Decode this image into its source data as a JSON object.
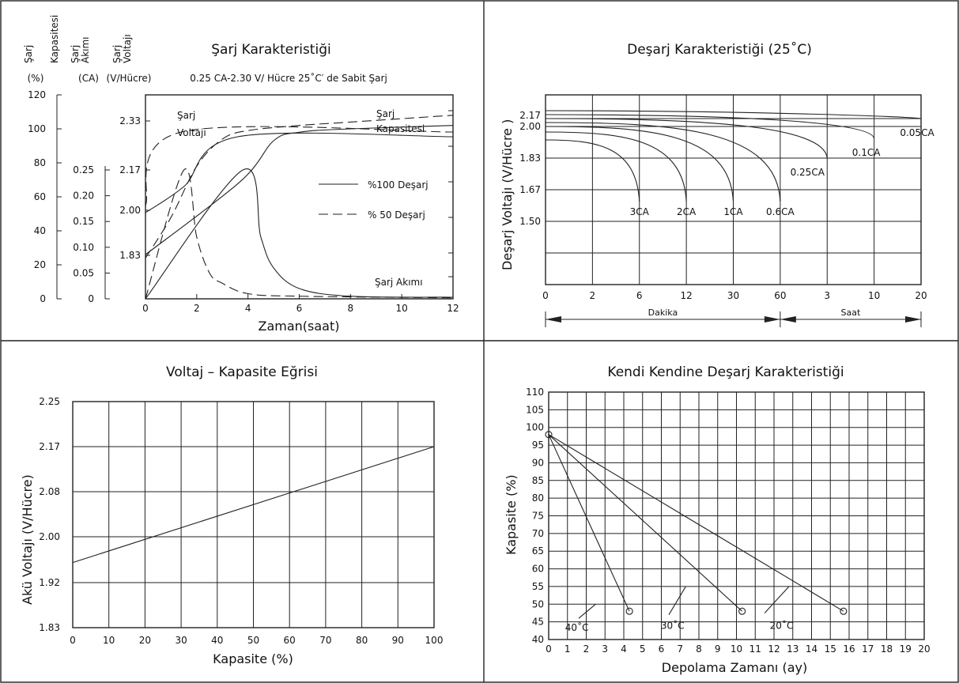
{
  "chart_data": [
    {
      "type": "line",
      "title": "Şarj Karakteristiği",
      "subtitle": "0.25 CA-2.30 V/ Hücre 25˚C′ de Sabit Şarj",
      "xlabel": "Zaman(saat)",
      "x_ticks": [
        "0",
        "2",
        "4",
        "6",
        "8",
        "10",
        "12"
      ],
      "xlim": [
        0,
        12
      ],
      "y_axes": [
        {
          "label": "Şarj Kapasitesi",
          "unit": "(%)",
          "ticks": [
            "120",
            "100",
            "80",
            "60",
            "40",
            "20",
            "0"
          ],
          "ylim": [
            0,
            120
          ]
        },
        {
          "label": "Şarj Akımı",
          "unit": "(CA)",
          "ticks": [
            "0.25",
            "0.20",
            "0.15",
            "0.10",
            "0.05",
            "0"
          ],
          "ylim": [
            0,
            0.25
          ]
        },
        {
          "label": "Şarj Voltajı",
          "unit": "(V/Hücre)",
          "ticks": [
            "2.33",
            "2.17",
            "2.00",
            "1.83"
          ]
        }
      ],
      "legend": [
        {
          "name": "%100 Deşarj",
          "style": "solid"
        },
        {
          "name": "% 50 Deşarj",
          "style": "dashed"
        }
      ],
      "annotations": [
        "Şarj",
        "Voltajı",
        "Şarj",
        "Kapasitesi",
        "Şarj Akımı"
      ],
      "series": [
        {
          "name": "%100 Deşarj",
          "style": "solid",
          "curve": "Şarj Voltajı",
          "points": [
            [
              0,
              1.99
            ],
            [
              1.5,
              2.1
            ],
            [
              3.6,
              2.31
            ],
            [
              12,
              2.31
            ]
          ]
        },
        {
          "name": "% 50 Deşarj",
          "style": "dashed",
          "curve": "Şarj Voltajı",
          "points": [
            [
              0,
              2.02
            ],
            [
              1.4,
              2.33
            ],
            [
              12,
              2.33
            ]
          ]
        },
        {
          "name": "%100 Deşarj",
          "style": "solid",
          "curve": "Şarj Kapasitesi",
          "points": [
            [
              0,
              26
            ],
            [
              3.7,
              69
            ],
            [
              5,
              93
            ],
            [
              6,
              98
            ],
            [
              8,
              100
            ],
            [
              12,
              102
            ]
          ]
        },
        {
          "name": "% 50 Deşarj",
          "style": "dashed",
          "curve": "Şarj Kapasitesi",
          "points": [
            [
              0,
              24
            ],
            [
              1,
              48
            ],
            [
              2,
              78
            ],
            [
              3,
              94
            ],
            [
              4,
              99
            ],
            [
              6,
              102
            ],
            [
              8,
              104
            ],
            [
              12,
              108
            ]
          ]
        },
        {
          "name": "%100 Deşarj",
          "style": "solid",
          "curve": "Şarj Akımı",
          "points": [
            [
              0,
              0
            ],
            [
              3.8,
              0.25
            ],
            [
              4.5,
              0.12
            ],
            [
              5,
              0.06
            ],
            [
              6,
              0.02
            ],
            [
              8,
              0.005
            ],
            [
              12,
              0.003
            ]
          ]
        },
        {
          "name": "% 50 Deşarj",
          "style": "dashed",
          "curve": "Şarj Akımı",
          "points": [
            [
              0,
              0
            ],
            [
              1.5,
              0.25
            ],
            [
              2,
              0.12
            ],
            [
              2.5,
              0.05
            ],
            [
              3,
              0.03
            ],
            [
              4,
              0.01
            ],
            [
              6,
              0.005
            ],
            [
              12,
              0.002
            ]
          ]
        }
      ]
    },
    {
      "type": "line",
      "title": "Deşarj Karakteristiği (25˚C)",
      "ylabel": "Deşarj Voltajı (V/Hücre  )",
      "y_ticks": [
        "2.17",
        "2.00",
        "1.83",
        "1.67",
        "1.50"
      ],
      "x_ticks": [
        "0",
        "2",
        "6",
        "12",
        "30",
        "60",
        "3",
        "10",
        "20"
      ],
      "x_groups": [
        {
          "label": "Dakika",
          "from": "0",
          "to": "60"
        },
        {
          "label": "Saat",
          "from": "60",
          "to": "20"
        }
      ],
      "series": [
        {
          "name": "3CA",
          "end_tick": "6"
        },
        {
          "name": "2CA",
          "end_tick": "12"
        },
        {
          "name": "1CA",
          "end_tick": "30"
        },
        {
          "name": "0.6CA",
          "end_tick": "60"
        },
        {
          "name": "0.25CA",
          "end_tick": "3"
        },
        {
          "name": "0.1CA",
          "end_tick": "10"
        },
        {
          "name": "0.05CA",
          "end_tick": "20"
        }
      ]
    },
    {
      "type": "line",
      "title": "Voltaj – Kapasite Eğrisi",
      "xlabel": "Kapasite (%)",
      "ylabel": "Akü Voltajı (V/Hücre)",
      "x_ticks": [
        "0",
        "10",
        "20",
        "30",
        "40",
        "50",
        "60",
        "70",
        "80",
        "90",
        "100"
      ],
      "y_ticks": [
        "2.25",
        "2.17",
        "2.08",
        "2.00",
        "1.92",
        "1.83"
      ],
      "xlim": [
        0,
        100
      ],
      "series": [
        {
          "name": "",
          "x": [
            0,
            100
          ],
          "y": [
            1.955,
            2.17
          ]
        }
      ]
    },
    {
      "type": "line",
      "title": "Kendi Kendine Deşarj Karakteristiği",
      "xlabel": "Depolama Zamanı (ay)",
      "ylabel": "Kapasite (%)",
      "x_ticks": [
        "0",
        "1",
        "2",
        "3",
        "4",
        "5",
        "6",
        "7",
        "8",
        "9",
        "10",
        "11",
        "12",
        "13",
        "14",
        "15",
        "16",
        "17",
        "18",
        "19",
        "20"
      ],
      "y_ticks": [
        "110",
        "105",
        "100",
        "95",
        "90",
        "85",
        "80",
        "75",
        "70",
        "65",
        "60",
        "55",
        "50",
        "45",
        "40"
      ],
      "xlim": [
        0,
        20
      ],
      "ylim": [
        40,
        110
      ],
      "series": [
        {
          "name": "40˚C",
          "x": [
            0,
            4.3
          ],
          "y": [
            98,
            48
          ]
        },
        {
          "name": "30˚C",
          "x": [
            0,
            10.3
          ],
          "y": [
            98,
            48
          ]
        },
        {
          "name": "20˚C",
          "x": [
            0,
            15.7
          ],
          "y": [
            98,
            48
          ]
        }
      ]
    }
  ]
}
